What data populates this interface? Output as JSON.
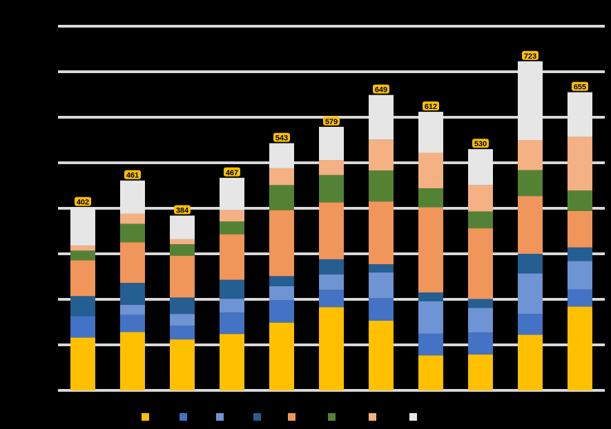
{
  "chart_data": {
    "type": "bar",
    "stacked": true,
    "title": "",
    "xlabel": "",
    "ylabel": "",
    "ylim": [
      0,
      800
    ],
    "gridlines": [
      0,
      100,
      200,
      300,
      400,
      500,
      600,
      700,
      800
    ],
    "grid": true,
    "grid_color": "#d9d9d9",
    "background": "#000000",
    "categories": [
      "",
      "",
      "",
      "",
      "",
      "",
      "",
      "",
      "",
      "",
      ""
    ],
    "series": [
      {
        "name": "",
        "color": "#ffc000",
        "values": [
          116,
          128,
          112,
          124,
          149,
          183,
          153,
          77,
          79,
          122,
          184
        ]
      },
      {
        "name": "",
        "color": "#4472c4",
        "values": [
          47,
          38,
          30,
          47,
          50,
          38,
          50,
          48,
          48,
          46,
          38
        ]
      },
      {
        "name": "",
        "color": "#6f94d3",
        "values": [
          0,
          22,
          26,
          30,
          30,
          34,
          56,
          71,
          54,
          89,
          62
        ]
      },
      {
        "name": "",
        "color": "#255e91",
        "values": [
          44,
          48,
          36,
          42,
          22,
          33,
          18,
          19,
          20,
          43,
          30
        ]
      },
      {
        "name": "",
        "color": "#f0965a",
        "values": [
          79,
          89,
          92,
          100,
          145,
          125,
          138,
          187,
          155,
          127,
          80
        ]
      },
      {
        "name": "",
        "color": "#548235",
        "values": [
          21,
          41,
          25,
          28,
          55,
          60,
          68,
          42,
          37,
          57,
          45
        ]
      },
      {
        "name": "",
        "color": "#f4b183",
        "values": [
          11,
          22,
          11,
          25,
          37,
          33,
          68,
          78,
          58,
          66,
          118
        ]
      },
      {
        "name": "",
        "color": "#e7e6e6",
        "values": [
          84,
          73,
          52,
          71,
          55,
          73,
          98,
          90,
          79,
          173,
          98
        ]
      }
    ],
    "totals": [
      402,
      461,
      384,
      467,
      543,
      579,
      649,
      612,
      530,
      723,
      655
    ],
    "data_labels": [
      "402",
      "461",
      "384",
      "467",
      "543",
      "579",
      "649",
      "612",
      "530",
      "723",
      "655"
    ],
    "data_label_color": "#ffc000",
    "legend": {
      "position": "bottom",
      "entries": [
        {
          "label": "",
          "color": "#ffc000"
        },
        {
          "label": "",
          "color": "#4472c4"
        },
        {
          "label": "",
          "color": "#6f94d3"
        },
        {
          "label": "",
          "color": "#255e91"
        },
        {
          "label": "",
          "color": "#f0965a"
        },
        {
          "label": "",
          "color": "#548235"
        },
        {
          "label": "",
          "color": "#f4b183"
        },
        {
          "label": "",
          "color": "#e7e6e6"
        }
      ]
    }
  }
}
